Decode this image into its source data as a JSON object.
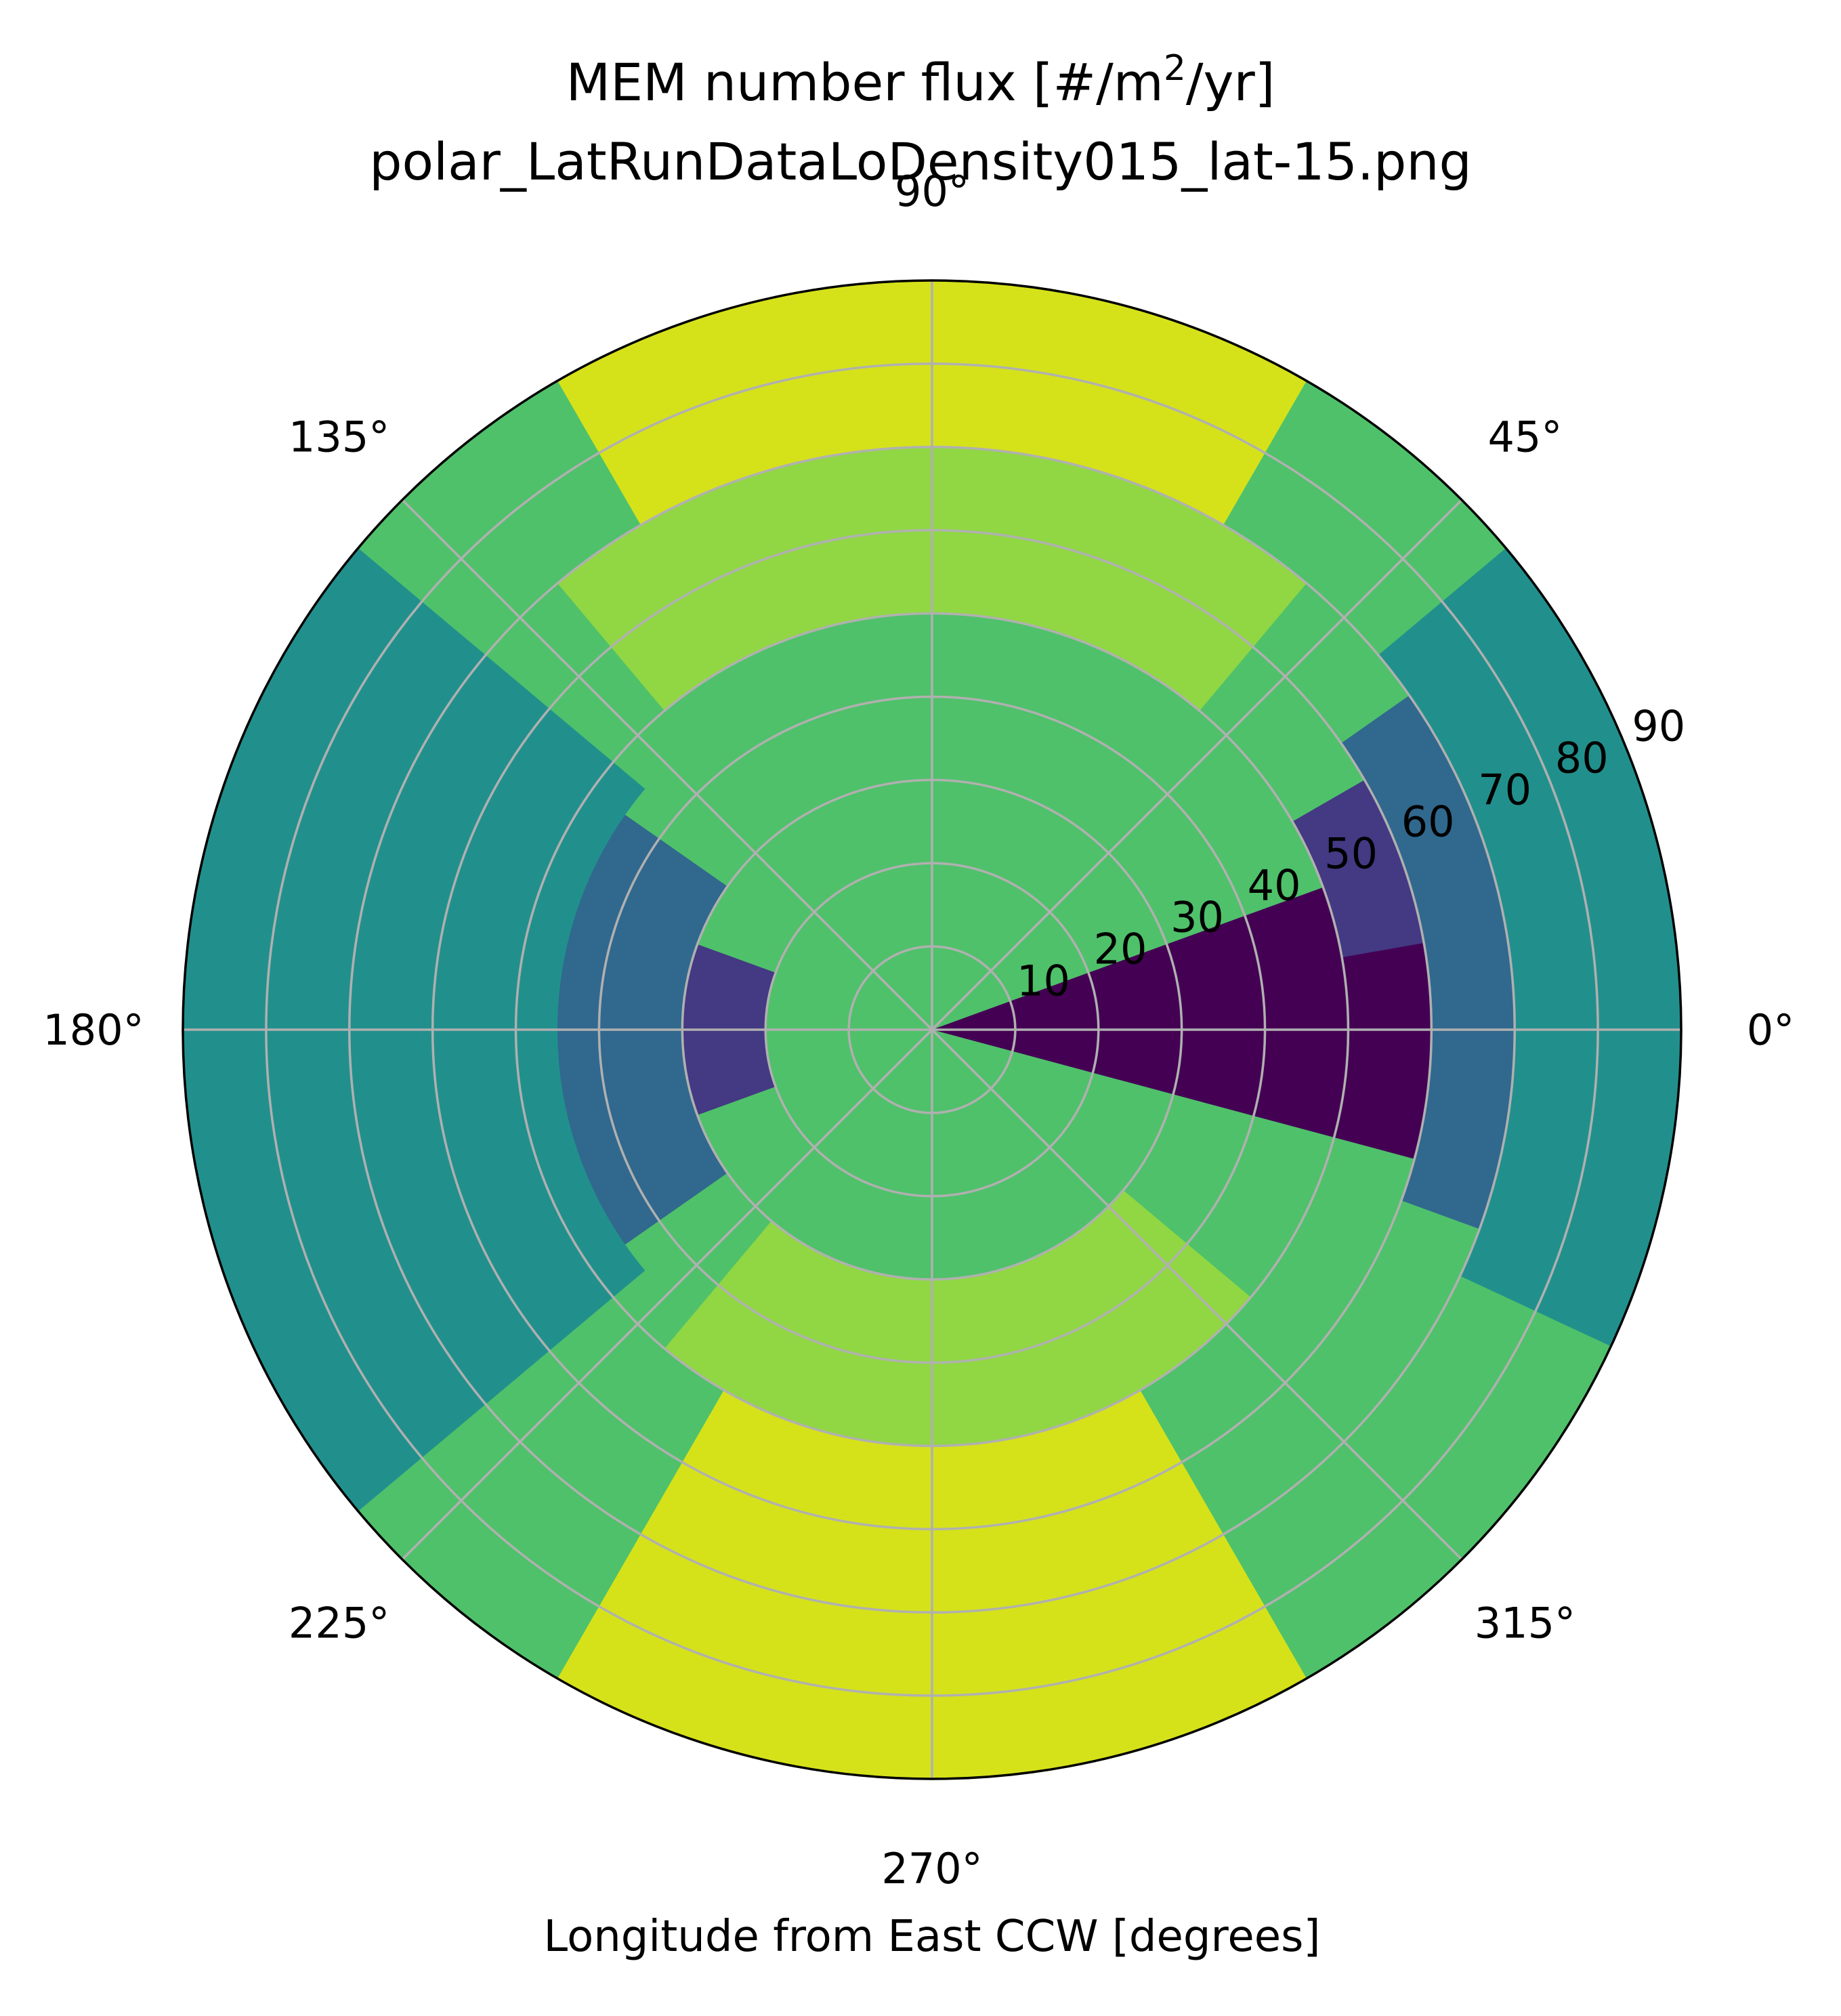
{
  "chart_data": {
    "type": "heatmap",
    "projection": "polar",
    "title_line1": "MEM number flux [#/m",
    "title_sup": "2",
    "title_line1_end": "/yr]",
    "title_line2": "polar_LatRunDataLoDensity015_lat-15.png",
    "xlabel": "Longitude from East CCW [degrees]",
    "angle_ticks": [
      "0°",
      "45°",
      "90°",
      "135°",
      "180°",
      "225°",
      "270°",
      "315°"
    ],
    "angle_tick_values": [
      0,
      45,
      90,
      135,
      180,
      225,
      270,
      315
    ],
    "radial_ticks": [
      "10",
      "20",
      "30",
      "40",
      "50",
      "60",
      "70",
      "80",
      "90"
    ],
    "radial_tick_values": [
      10,
      20,
      30,
      40,
      50,
      60,
      70,
      80,
      90
    ],
    "rlim": [
      0,
      90
    ],
    "grid": true,
    "colormap": "viridis",
    "colors": [
      "#440154",
      "#443983",
      "#31688e",
      "#21908d",
      "#35b779",
      "#4fc16a",
      "#90d743",
      "#d5e21a"
    ],
    "bands": [
      {
        "theta": [
          -15,
          20
        ],
        "r": [
          0,
          90
        ],
        "level": 0
      },
      {
        "theta": [
          160,
          200
        ],
        "r": [
          20,
          90
        ],
        "level": 1
      },
      {
        "theta": [
          10,
          30
        ],
        "r": [
          50,
          90
        ],
        "level": 1
      },
      {
        "theta": [
          145,
          215
        ],
        "r": [
          30,
          90
        ],
        "level": 2
      },
      {
        "theta": [
          -20,
          35
        ],
        "r": [
          60,
          90
        ],
        "level": 2
      },
      {
        "theta": [
          140,
          220
        ],
        "r": [
          45,
          90
        ],
        "level": 3
      },
      {
        "theta": [
          -25,
          40
        ],
        "r": [
          70,
          90
        ],
        "level": 3
      },
      {
        "theta": [
          60,
          120
        ],
        "r": [
          70,
          90
        ],
        "level": 7
      },
      {
        "theta": [
          240,
          300
        ],
        "r": [
          50,
          90
        ],
        "level": 7
      },
      {
        "theta": [
          50,
          130
        ],
        "r": [
          50,
          70
        ],
        "level": 6
      },
      {
        "theta": [
          230,
          320
        ],
        "r": [
          30,
          50
        ],
        "level": 6
      }
    ]
  }
}
